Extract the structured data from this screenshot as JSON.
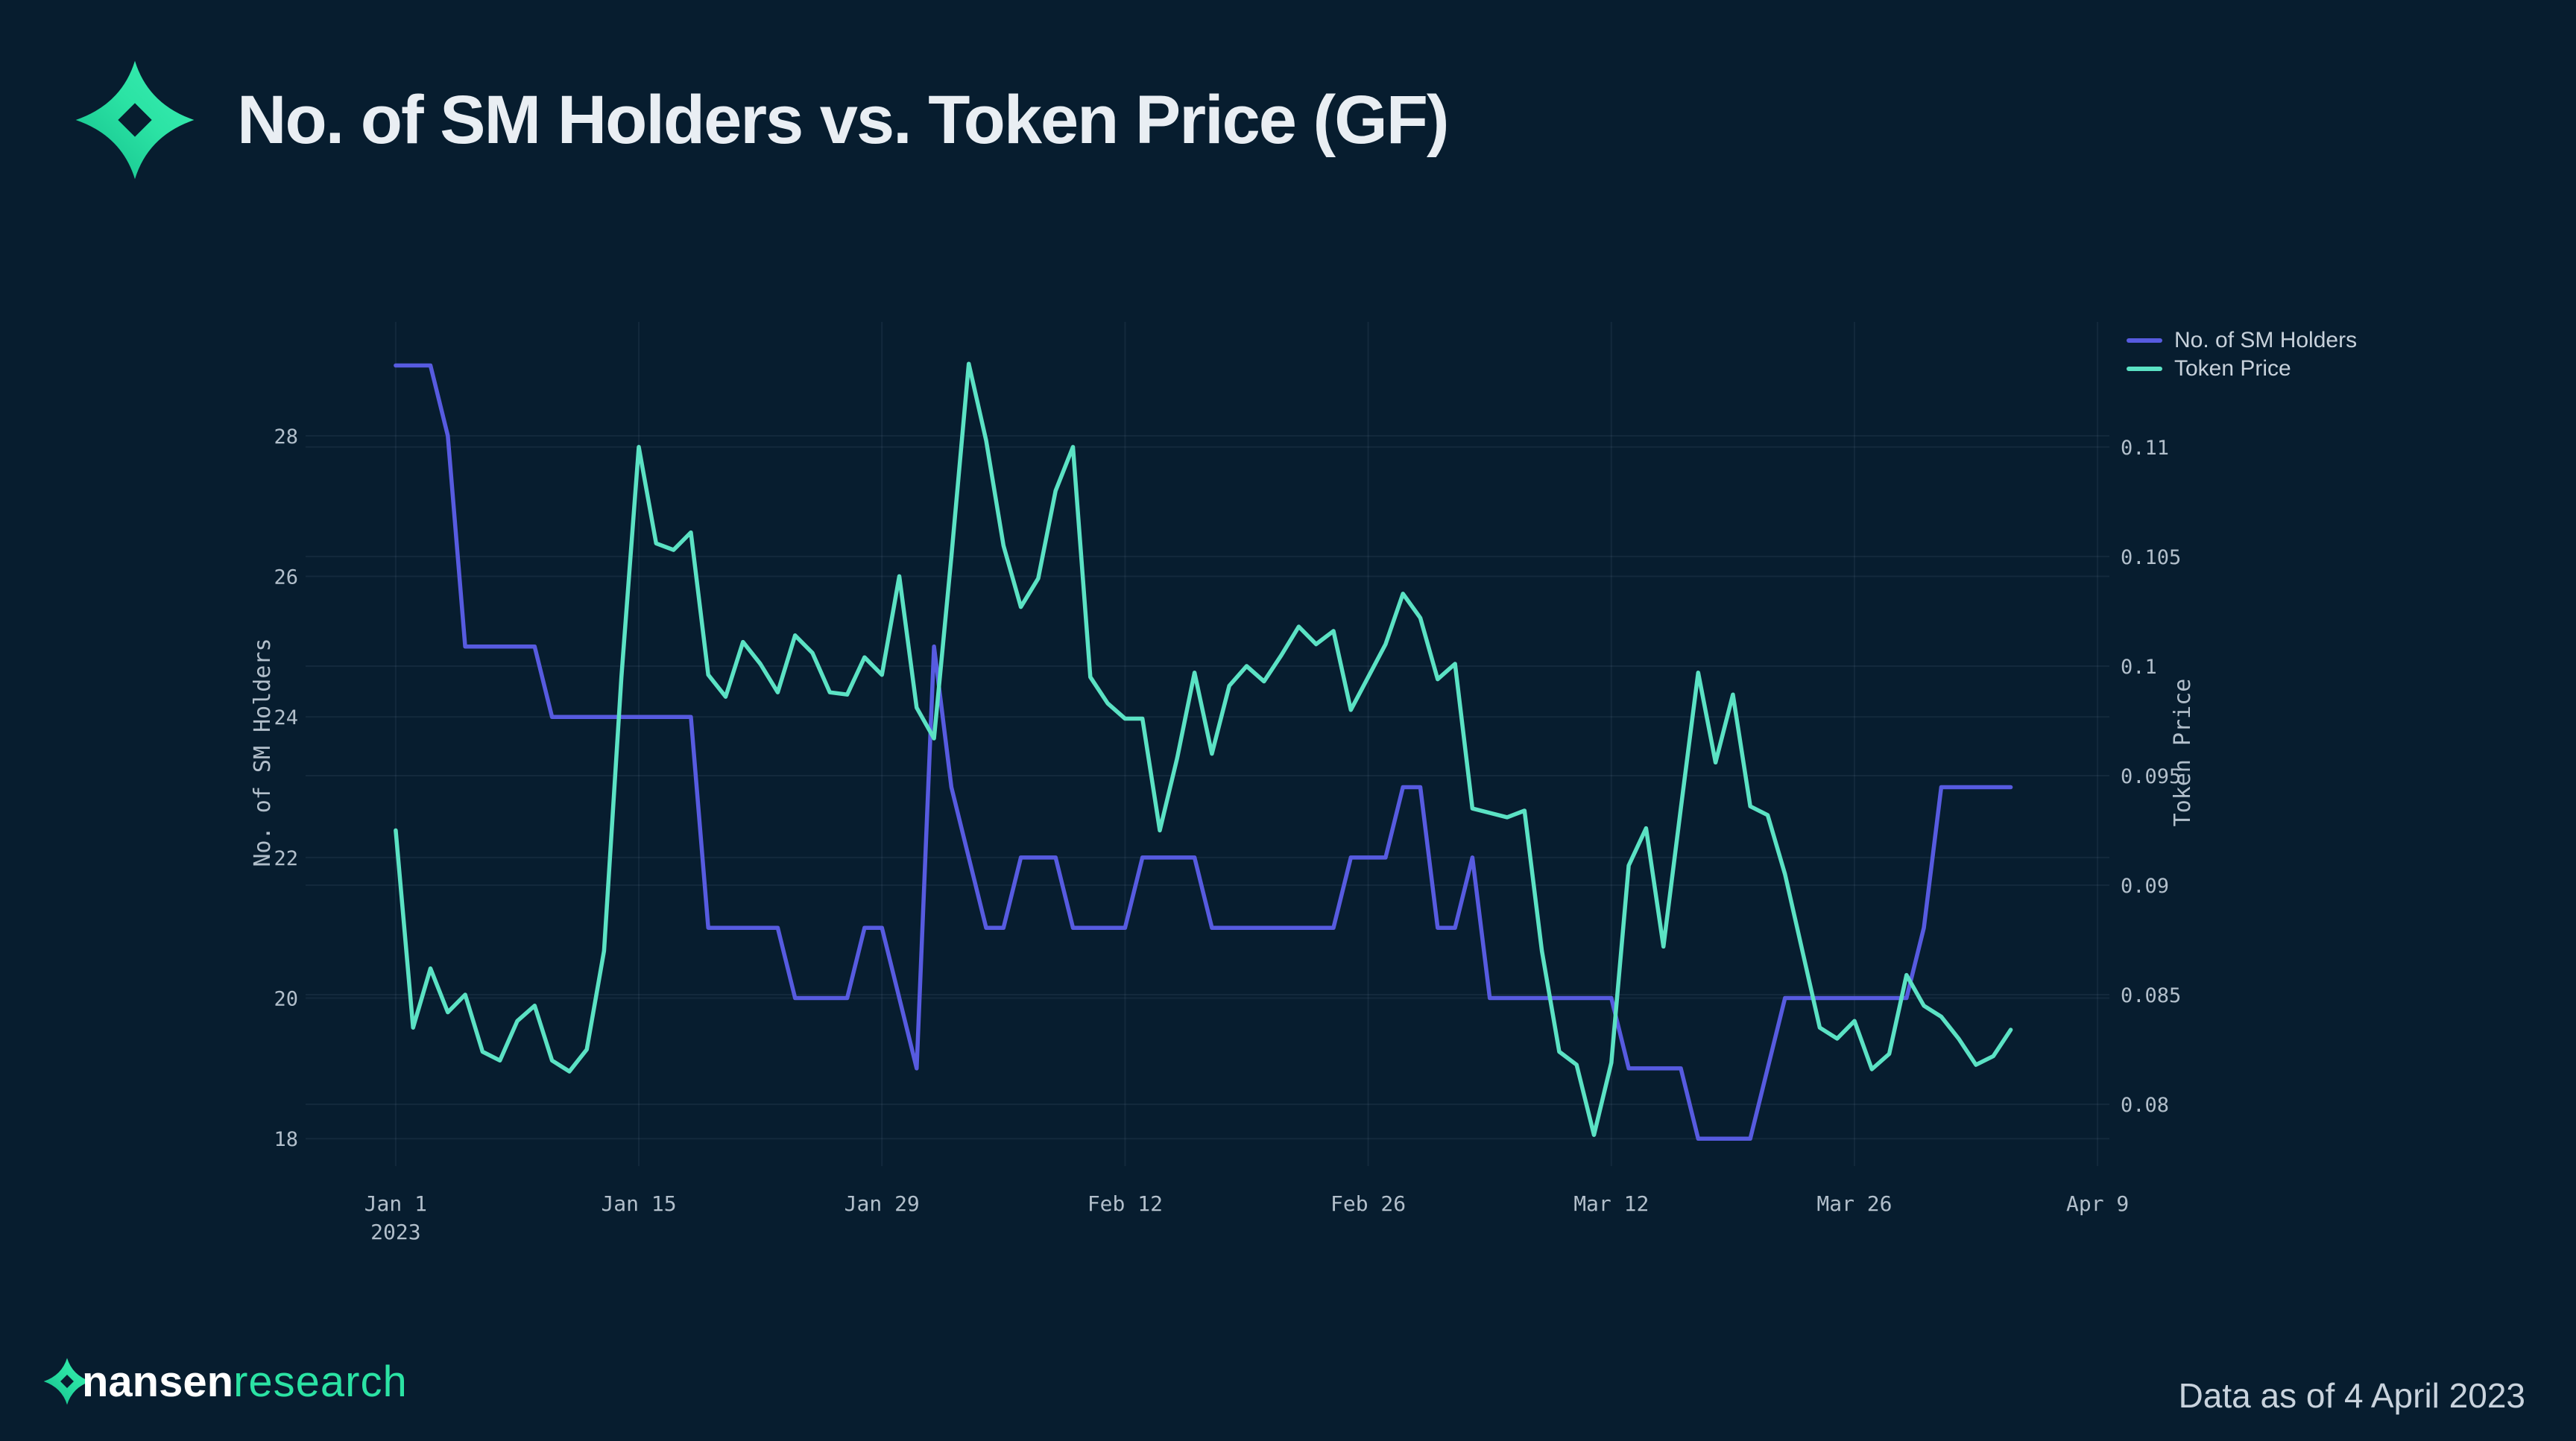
{
  "title": "No. of SM Holders vs. Token Price (GF)",
  "logo": {
    "name": "nansen-logo",
    "color_main": "#2BE3A4",
    "color_dark": "#12BD8B"
  },
  "legend": [
    {
      "label": "No. of SM Holders",
      "color": "#575BE0"
    },
    {
      "label": "Token Price",
      "color": "#5BE2C4"
    }
  ],
  "footer": {
    "brand": "nansen",
    "brand_suffix": "research",
    "note": "Data as of 4 April 2023"
  },
  "chart_data": {
    "type": "line",
    "title": "No. of SM Holders vs. Token Price (GF)",
    "grid": true,
    "legend_position": "top-right",
    "x_axis": {
      "start_label_year": "2023",
      "tick_days": [
        0,
        14,
        28,
        42,
        56,
        70,
        84,
        98
      ],
      "tick_labels": [
        "Jan 1",
        "Jan 15",
        "Jan 29",
        "Feb 12",
        "Feb 26",
        "Mar 12",
        "Mar 26",
        "Apr 9"
      ],
      "tick_sublabels": [
        "2023",
        "",
        "",
        "",
        "",
        "",
        "",
        ""
      ],
      "range_days": [
        -3.9,
        101.9
      ]
    },
    "left_axis": {
      "title": "No. of SM Holders",
      "tick_values": [
        18,
        20,
        22,
        24,
        26,
        28
      ],
      "tick_labels": [
        "18",
        "20",
        "22",
        "24",
        "26",
        "28"
      ],
      "range": [
        17.61,
        29.62
      ]
    },
    "right_axis": {
      "title": "Token Price",
      "tick_values": [
        0.08,
        0.085,
        0.09,
        0.095,
        0.1,
        0.105,
        0.11
      ],
      "tick_labels": [
        "0.08",
        "0.085",
        "0.09",
        "0.095",
        "0.1",
        "0.105",
        "0.11"
      ],
      "range": [
        0.07718,
        0.11571
      ]
    },
    "series": [
      {
        "name": "No. of SM Holders",
        "color": "#575BE0",
        "axis": "left",
        "start_day": 0,
        "values": [
          29,
          29,
          29,
          28,
          25,
          25,
          25,
          25,
          25,
          24,
          24,
          24,
          24,
          24,
          24,
          24,
          24,
          24,
          21,
          21,
          21,
          21,
          21,
          20,
          20,
          20,
          20,
          21,
          21,
          20,
          19,
          25,
          23,
          22,
          21,
          21,
          22,
          22,
          22,
          21,
          21,
          21,
          21,
          22,
          22,
          22,
          22,
          21,
          21,
          21,
          21,
          21,
          21,
          21,
          21,
          22,
          22,
          22,
          23,
          23,
          21,
          21,
          22,
          20,
          20,
          20,
          20,
          20,
          20,
          20,
          20,
          19,
          19,
          19,
          19,
          18,
          18,
          18,
          18,
          19,
          20,
          20,
          20,
          20,
          20,
          20,
          20,
          20,
          21,
          23,
          23,
          23,
          23,
          23
        ]
      },
      {
        "name": "Token Price",
        "color": "#5BE2C4",
        "axis": "right",
        "start_day": 0,
        "values": [
          0.0925,
          0.0835,
          0.0862,
          0.0842,
          0.085,
          0.0824,
          0.082,
          0.0838,
          0.0845,
          0.082,
          0.0815,
          0.0825,
          0.087,
          0.0995,
          0.11,
          0.1056,
          0.1053,
          0.1061,
          0.0996,
          0.0986,
          0.1011,
          0.1001,
          0.0988,
          0.1014,
          0.1006,
          0.0988,
          0.0987,
          0.1004,
          0.0996,
          0.1041,
          0.0981,
          0.0967,
          0.105,
          0.1138,
          0.1103,
          0.1055,
          0.1027,
          0.104,
          0.108,
          0.11,
          0.0995,
          0.0983,
          0.0976,
          0.0976,
          0.0925,
          0.0958,
          0.0997,
          0.096,
          0.0991,
          0.1,
          0.0993,
          0.1005,
          0.1018,
          0.101,
          0.1016,
          0.098,
          0.0995,
          0.101,
          0.1033,
          0.1022,
          0.0994,
          0.1001,
          0.0935,
          0.0933,
          0.0931,
          0.0934,
          0.087,
          0.0824,
          0.0818,
          0.0786,
          0.0819,
          0.0909,
          0.0926,
          0.0872,
          0.0935,
          0.0997,
          0.0956,
          0.0987,
          0.0936,
          0.0932,
          0.0905,
          0.087,
          0.0835,
          0.083,
          0.0838,
          0.0816,
          0.0823,
          0.0859,
          0.0845,
          0.084,
          0.083,
          0.0818,
          0.0822,
          0.0834
        ]
      }
    ]
  }
}
